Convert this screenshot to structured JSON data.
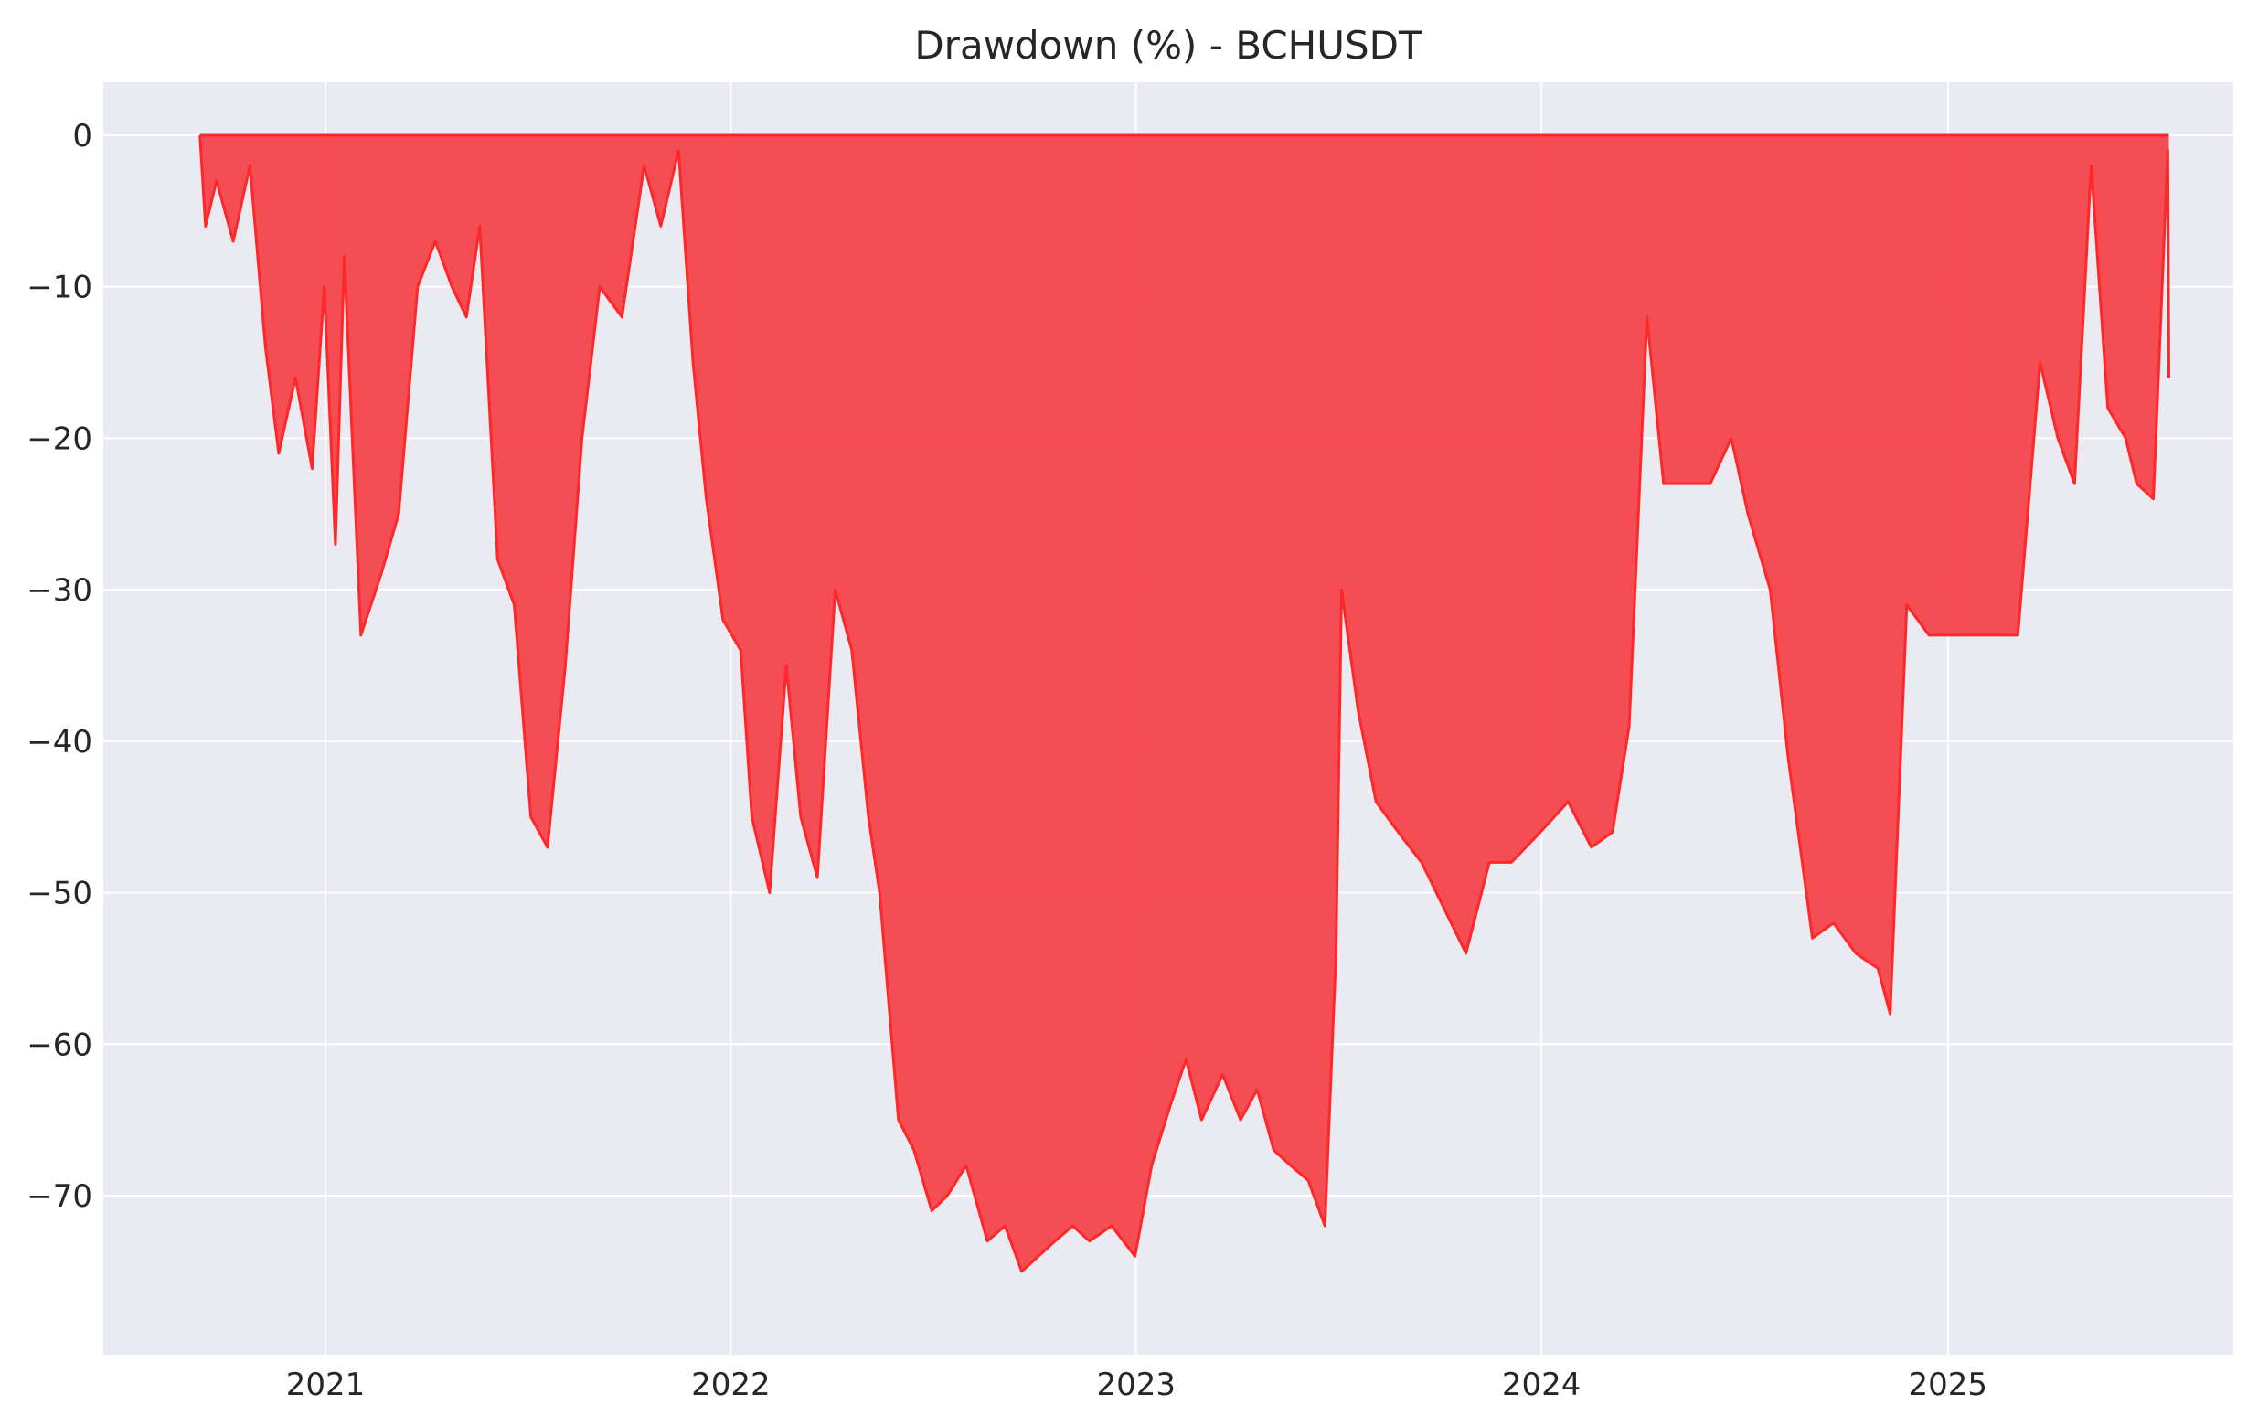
{
  "chart_data": {
    "type": "area",
    "title": "Drawdown (%) - BCHUSDT",
    "xlabel": "",
    "ylabel": "",
    "x_axis": "date",
    "xlim": [
      "2020-06-15",
      "2025-09-15"
    ],
    "ylim": [
      -80.5,
      3.5
    ],
    "x_ticks": [
      "2021-01-01",
      "2022-01-01",
      "2023-01-01",
      "2024-01-01",
      "2025-01-01"
    ],
    "x_tick_labels": [
      "2021",
      "2022",
      "2023",
      "2024",
      "2025"
    ],
    "y_ticks": [
      0,
      -10,
      -20,
      -30,
      -40,
      -50,
      -60,
      -70
    ],
    "y_tick_labels": [
      "0",
      "−10",
      "−20",
      "−30",
      "−40",
      "−50",
      "−60",
      "−70"
    ],
    "grid": true,
    "legend": false,
    "colors": {
      "fill": "#f5444b",
      "line": "#ff2828",
      "background": "#eaeaf2",
      "grid": "#ffffff"
    },
    "series": [
      {
        "x": [
          "2020-09-10",
          "2020-09-15",
          "2020-09-25",
          "2020-10-10",
          "2020-10-25",
          "2020-11-08",
          "2020-11-20",
          "2020-12-05",
          "2020-12-20",
          "2020-12-31",
          "2021-01-10",
          "2021-01-18",
          "2021-02-02",
          "2021-02-20",
          "2021-03-08",
          "2021-03-25",
          "2021-04-10",
          "2021-04-25",
          "2021-05-08",
          "2021-05-20",
          "2021-06-05",
          "2021-06-20",
          "2021-07-05",
          "2021-07-20",
          "2021-08-05",
          "2021-08-20",
          "2021-09-05",
          "2021-09-25",
          "2021-10-15",
          "2021-10-30",
          "2021-11-15",
          "2021-11-28",
          "2021-12-10",
          "2021-12-25",
          "2022-01-10",
          "2022-01-20",
          "2022-02-05",
          "2022-02-20",
          "2022-03-05",
          "2022-03-20",
          "2022-04-05",
          "2022-04-20",
          "2022-05-05",
          "2022-05-15",
          "2022-06-01",
          "2022-06-15",
          "2022-07-01",
          "2022-07-15",
          "2022-08-01",
          "2022-08-20",
          "2022-09-05",
          "2022-09-20",
          "2022-10-05",
          "2022-10-20",
          "2022-11-05",
          "2022-11-20",
          "2022-12-10",
          "2022-12-31",
          "2023-01-15",
          "2023-02-01",
          "2023-02-15",
          "2023-03-01",
          "2023-03-20",
          "2023-04-05",
          "2023-04-20",
          "2023-05-05",
          "2023-05-20",
          "2023-06-05",
          "2023-06-20",
          "2023-06-30",
          "2023-07-05",
          "2023-07-20",
          "2023-08-05",
          "2023-08-25",
          "2023-09-15",
          "2023-10-05",
          "2023-10-25",
          "2023-11-15",
          "2023-12-05",
          "2023-12-31",
          "2024-01-25",
          "2024-02-15",
          "2024-03-05",
          "2024-03-20",
          "2024-04-05",
          "2024-04-20",
          "2024-05-10",
          "2024-06-01",
          "2024-06-20",
          "2024-07-05",
          "2024-07-25",
          "2024-08-10",
          "2024-09-01",
          "2024-09-20",
          "2024-10-10",
          "2024-10-30",
          "2024-11-10",
          "2024-11-25",
          "2024-12-15",
          "2025-01-15",
          "2025-02-15",
          "2025-03-05",
          "2025-03-25",
          "2025-04-10",
          "2025-04-25",
          "2025-05-10",
          "2025-05-25",
          "2025-06-10",
          "2025-06-20",
          "2025-07-05",
          "2025-07-18",
          "2025-07-19"
        ],
        "y": [
          0,
          -6,
          -3,
          -7,
          -2,
          -14,
          -21,
          -16,
          -22,
          -10,
          -27,
          -8,
          -33,
          -29,
          -25,
          -10,
          -7,
          -10,
          -12,
          -6,
          -28,
          -31,
          -45,
          -47,
          -35,
          -20,
          -10,
          -12,
          -2,
          -6,
          -1,
          -15,
          -24,
          -32,
          -34,
          -45,
          -50,
          -35,
          -45,
          -49,
          -30,
          -34,
          -45,
          -50,
          -65,
          -67,
          -71,
          -70,
          -68,
          -73,
          -72,
          -75,
          -74,
          -73,
          -72,
          -73,
          -72,
          -74,
          -68,
          -64,
          -61,
          -65,
          -62,
          -65,
          -63,
          -67,
          -68,
          -69,
          -72,
          -54,
          -30,
          -38,
          -44,
          -46,
          -48,
          -51,
          -54,
          -48,
          -48,
          -46,
          -44,
          -47,
          -46,
          -39,
          -12,
          -23,
          -23,
          -23,
          -20,
          -25,
          -30,
          -41,
          -53,
          -52,
          -54,
          -55,
          -58,
          -31,
          -33,
          -33,
          -33,
          -33,
          -15,
          -20,
          -23,
          -2,
          -18,
          -20,
          -23,
          -24,
          -1,
          -16
        ]
      }
    ]
  }
}
